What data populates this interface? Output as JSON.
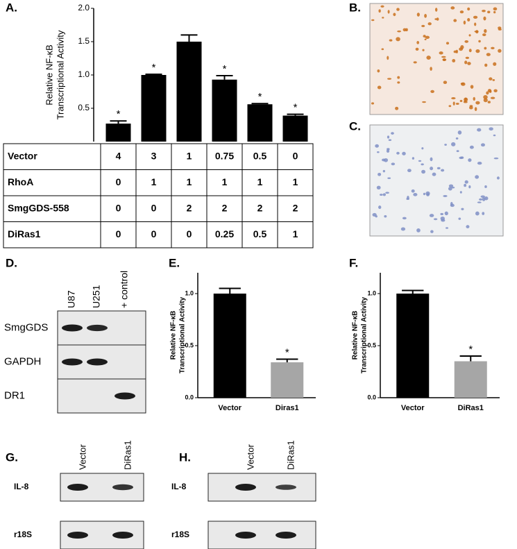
{
  "chart_data": [
    {
      "type": "bar",
      "panel": "A.",
      "ylabel": [
        "Relative NF-κB",
        "Transcriptional Activity"
      ],
      "values": [
        0.27,
        1.0,
        1.5,
        0.93,
        0.56,
        0.39
      ],
      "errors": [
        0.04,
        0.01,
        0.1,
        0.06,
        0.01,
        0.02
      ],
      "annotations": [
        "*",
        "*",
        null,
        "*",
        "*",
        "*"
      ],
      "color": "#000000",
      "ylim": [
        0,
        2.0
      ],
      "yticks": [
        {
          "value": 0.5,
          "label": "0.5"
        },
        {
          "value": 1.0,
          "label": "1.0"
        },
        {
          "value": 1.5,
          "label": "1.5"
        },
        {
          "value": 2.0,
          "label": "2.0"
        }
      ]
    },
    {
      "type": "bar",
      "panel": "E.",
      "ylabel": [
        "Relative NF-κB",
        "Transcriptional Activity"
      ],
      "categories": [
        "Vector",
        "Diras1"
      ],
      "values": [
        1.0,
        0.34
      ],
      "errors": [
        0.05,
        0.03
      ],
      "annotations": [
        null,
        "*"
      ],
      "colors": [
        "#000000",
        "#a6a6a6"
      ],
      "ylim": [
        0,
        1.2
      ],
      "yticks": [
        {
          "value": 0,
          "label": "0.0"
        },
        {
          "value": 0.5,
          "label": "0.5"
        },
        {
          "value": 1.0,
          "label": "1.0"
        }
      ]
    },
    {
      "type": "bar",
      "panel": "F.",
      "ylabel": [
        "Relative NF-κB",
        "Transcriptional Activity"
      ],
      "categories": [
        "Vector",
        "DiRas1"
      ],
      "values": [
        1.0,
        0.35
      ],
      "errors": [
        0.03,
        0.05
      ],
      "annotations": [
        null,
        "*"
      ],
      "colors": [
        "#000000",
        "#a6a6a6"
      ],
      "ylim": [
        0,
        1.2
      ],
      "yticks": [
        {
          "value": 0,
          "label": "0.0"
        },
        {
          "value": 0.5,
          "label": "0.5"
        },
        {
          "value": 1.0,
          "label": "1.0"
        }
      ]
    }
  ],
  "table": {
    "rows": [
      [
        "Vector",
        "4",
        "3",
        "1",
        "0.75",
        "0.5",
        "0"
      ],
      [
        "RhoA",
        "0",
        "1",
        "1",
        "1",
        "1",
        "1"
      ],
      [
        "SmgGDS-558",
        "0",
        "0",
        "2",
        "2",
        "2",
        "2"
      ],
      [
        "DiRas1",
        "0",
        "0",
        "0",
        "0.25",
        "0.5",
        "1"
      ]
    ]
  },
  "images": [
    {
      "panel": "B."
    },
    {
      "panel": "C."
    }
  ],
  "blots": [
    {
      "panel": "D.",
      "lanes": [
        "U87",
        "U251",
        "+ control"
      ],
      "rows": [
        "SmgGDS",
        "GAPDH",
        "DR1"
      ]
    },
    {
      "panel": "G.",
      "lanes": [
        "Vector",
        "DiRas1"
      ],
      "rows": [
        "IL-8",
        "r18S"
      ]
    },
    {
      "panel": "H.",
      "lanes": [
        "Vector",
        "DiRas1"
      ],
      "rows": [
        "IL-8",
        "r18S"
      ]
    }
  ]
}
